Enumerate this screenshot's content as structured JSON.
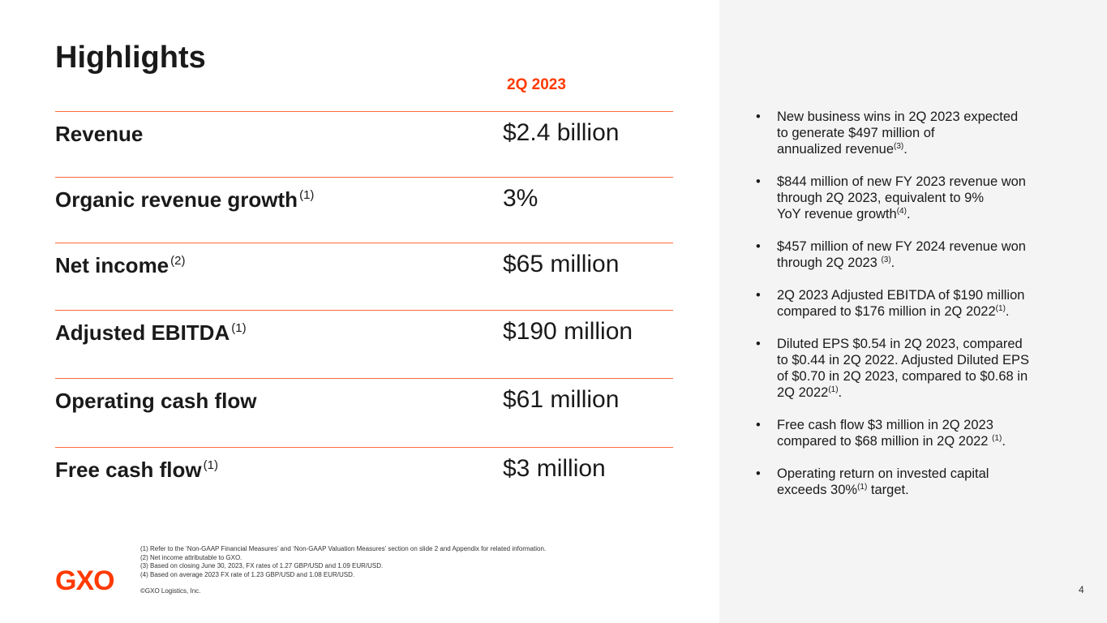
{
  "title": "Highlights",
  "column_header": "2Q 2023",
  "rows": [
    {
      "label": "Revenue",
      "sup": "",
      "value": "$2.4 billion"
    },
    {
      "label": "Organic revenue growth",
      "sup": "(1)",
      "value": "3%"
    },
    {
      "label": "Net income",
      "sup": "(2)",
      "value": "$65 million"
    },
    {
      "label": "Adjusted EBITDA",
      "sup": "(1)",
      "value": "$190 million"
    },
    {
      "label": "Operating cash flow",
      "sup": "",
      "value": "$61 million"
    },
    {
      "label": "Free cash flow",
      "sup": "(1)",
      "value": "$3 million"
    }
  ],
  "bullets": [
    {
      "pre": "New business wins in 2Q 2023 expected\nto generate $497 million of\nannualized revenue",
      "sup": "(3)",
      "post": "."
    },
    {
      "pre": "$844 million of new FY 2023 revenue won\nthrough 2Q 2023, equivalent to 9%\nYoY revenue growth",
      "sup": "(4)",
      "post": "."
    },
    {
      "pre": "$457 million of new FY 2024 revenue won\nthrough 2Q 2023 ",
      "sup": "(3)",
      "post": "."
    },
    {
      "pre": "2Q 2023 Adjusted EBITDA of $190 million\ncompared to $176 million in 2Q 2022",
      "sup": "(1)",
      "post": "."
    },
    {
      "pre": "Diluted EPS $0.54 in 2Q 2023, compared\nto $0.44 in 2Q 2022. Adjusted Diluted EPS\nof $0.70 in 2Q 2023, compared to $0.68 in\n2Q 2022",
      "sup": "(1)",
      "post": "."
    },
    {
      "pre": "Free cash flow $3 million in 2Q 2023\ncompared to $68 million in 2Q 2022 ",
      "sup": "(1)",
      "post": "."
    },
    {
      "pre": "Operating return on invested capital\nexceeds 30%",
      "sup": "(1)",
      "post": " target."
    }
  ],
  "footnotes": [
    "(1) Refer to the ‘Non-GAAP Financial Measures’ and ‘Non-GAAP Valuation Measures’ section on slide 2 and Appendix for related information.",
    "(2) Net income attributable to GXO.",
    "(3) Based on closing June 30, 2023, FX rates of 1.27 GBP/USD and 1.09 EUR/USD.",
    "(4) Based on average 2023 FX rate of 1.23 GBP/USD and 1.08 EUR/USD."
  ],
  "copyright": "©GXO Logistics, Inc.",
  "logo": "GXO",
  "page_number": "4",
  "colors": {
    "accent": "#ff3a00",
    "panel": "#f4f4f4"
  }
}
